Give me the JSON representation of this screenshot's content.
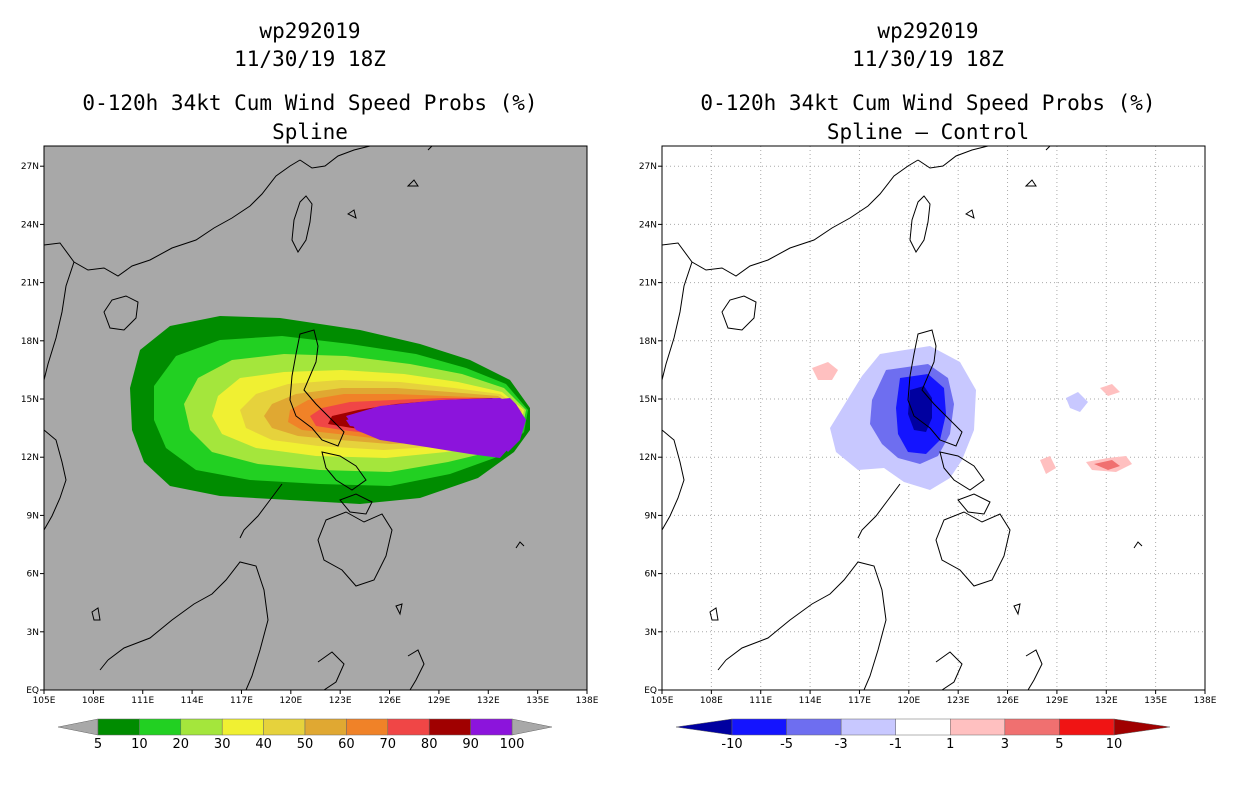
{
  "left_panel": {
    "storm_id": "wp292019",
    "datetime": "11/30/19 18Z",
    "product": "0-120h 34kt Cum Wind Speed Probs (%)",
    "subtitle": "Spline",
    "background_color": "#a8a8a8",
    "colorbar_labels": [
      "5",
      "10",
      "20",
      "30",
      "40",
      "50",
      "60",
      "70",
      "80",
      "90",
      "100"
    ],
    "colorbar_colors": [
      "#008c00",
      "#22d022",
      "#a4e63c",
      "#f0f032",
      "#e6d23c",
      "#e0a832",
      "#f08228",
      "#f04646",
      "#a00000",
      "#8c14dc"
    ]
  },
  "right_panel": {
    "storm_id": "wp292019",
    "datetime": "11/30/19 18Z",
    "product": "0-120h 34kt Cum Wind Speed Probs (%)",
    "subtitle": "Spline — Control",
    "background_color": "#ffffff",
    "colorbar_labels": [
      "-10",
      "-5",
      "-3",
      "-1",
      "1",
      "3",
      "5",
      "10"
    ],
    "colorbar_colors": [
      "#0000a0",
      "#1414ff",
      "#6e6ef0",
      "#c8c8ff",
      "#ffffff",
      "#ffc0c0",
      "#f07070",
      "#f01414",
      "#a00000"
    ]
  },
  "axes": {
    "lon_labels": [
      "105E",
      "108E",
      "111E",
      "114E",
      "117E",
      "120E",
      "123E",
      "126E",
      "129E",
      "132E",
      "135E",
      "138E"
    ],
    "lat_labels": [
      "EQ",
      "3N",
      "6N",
      "9N",
      "12N",
      "15N",
      "18N",
      "21N",
      "24N",
      "27N"
    ]
  }
}
